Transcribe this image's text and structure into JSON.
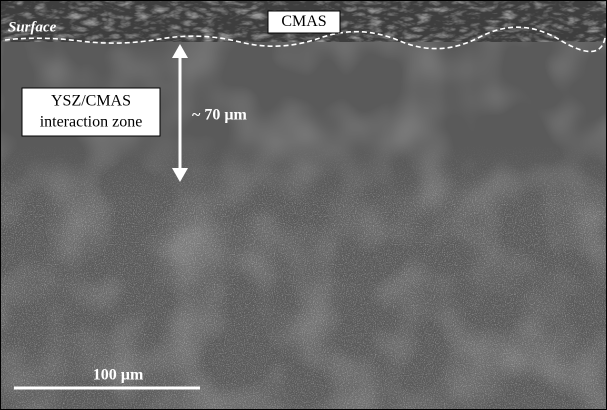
{
  "labels": {
    "surface": "Surface",
    "cmas": "CMAS",
    "zone_line1": "YSZ/CMAS",
    "zone_line2": "interaction zone",
    "thickness": "~ 70 µm",
    "scale_bar": "100 µm"
  }
}
